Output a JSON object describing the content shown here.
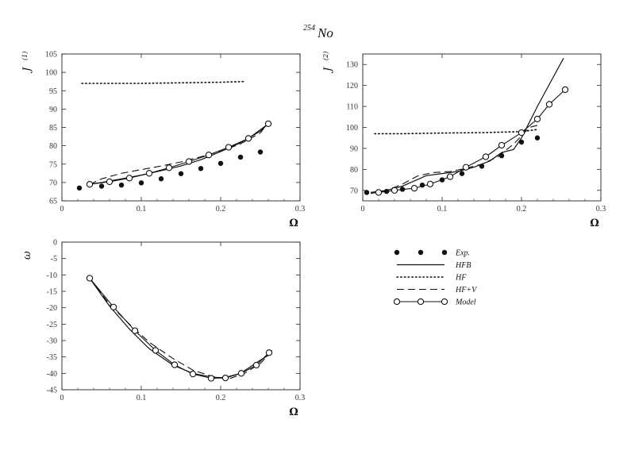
{
  "figure": {
    "title_mass": "254",
    "title_element": "No"
  },
  "legend": [
    {
      "label": "Exp.",
      "style": "dots"
    },
    {
      "label": "HFB",
      "style": "solid"
    },
    {
      "label": "HF",
      "style": "dotted"
    },
    {
      "label": "HF+V",
      "style": "dashed"
    },
    {
      "label": "Model",
      "style": "circles"
    }
  ],
  "colors": {
    "ink": "#111111",
    "frame": "#222222",
    "background": "#ffffff"
  },
  "chart_data": [
    {
      "type": "line",
      "id": "j1",
      "ylabel_main": "J",
      "ylabel_sup": "(1)",
      "xlabel": "Ω",
      "xlim": [
        0,
        0.3
      ],
      "ylim": [
        65,
        105
      ],
      "xticks": [
        "0",
        "0.1",
        "0.2",
        "0.3"
      ],
      "yticks": [
        "65",
        "70",
        "75",
        "80",
        "85",
        "90",
        "95",
        "100",
        "105"
      ],
      "series": [
        {
          "name": "Exp.",
          "style": "dots",
          "x": [
            0.022,
            0.05,
            0.075,
            0.1,
            0.125,
            0.15,
            0.175,
            0.2,
            0.225,
            0.25
          ],
          "y": [
            68.5,
            69,
            69.3,
            69.9,
            71,
            72.4,
            73.8,
            75.2,
            76.9,
            78.3
          ]
        },
        {
          "name": "HFB",
          "style": "solid",
          "x": [
            0.035,
            0.05,
            0.075,
            0.1,
            0.125,
            0.15,
            0.175,
            0.2,
            0.225,
            0.25,
            0.26
          ],
          "y": [
            69.5,
            70,
            71,
            72,
            73.2,
            74.5,
            76.2,
            78.4,
            80.8,
            84,
            86
          ]
        },
        {
          "name": "HF",
          "style": "dotted",
          "x": [
            0.025,
            0.1,
            0.2,
            0.23
          ],
          "y": [
            97,
            97,
            97.3,
            97.5
          ]
        },
        {
          "name": "HF+V",
          "style": "dashed",
          "x": [
            0.035,
            0.05,
            0.075,
            0.1,
            0.125,
            0.15,
            0.175,
            0.2,
            0.225,
            0.25,
            0.26
          ],
          "y": [
            69.5,
            71,
            72.5,
            73.5,
            74.5,
            75.6,
            77,
            78.5,
            80.5,
            83.5,
            86.3
          ]
        },
        {
          "name": "Model",
          "style": "circles",
          "x": [
            0.035,
            0.06,
            0.085,
            0.11,
            0.135,
            0.16,
            0.185,
            0.21,
            0.235,
            0.26
          ],
          "y": [
            69.5,
            70.2,
            71.2,
            72.5,
            74,
            75.7,
            77.5,
            79.6,
            82,
            86
          ]
        }
      ]
    },
    {
      "type": "line",
      "id": "j2",
      "ylabel_main": "J",
      "ylabel_sup": "(2)",
      "xlabel": "Ω",
      "xlim": [
        0,
        0.3
      ],
      "ylim": [
        65,
        135
      ],
      "xticks": [
        "0",
        "0.1",
        "0.2",
        "0.3"
      ],
      "yticks": [
        "70",
        "80",
        "90",
        "100",
        "110",
        "120",
        "130"
      ],
      "series": [
        {
          "name": "Exp.",
          "style": "dots",
          "x": [
            0.005,
            0.03,
            0.05,
            0.075,
            0.1,
            0.125,
            0.15,
            0.175,
            0.2,
            0.22
          ],
          "y": [
            69,
            69.5,
            70.5,
            72.5,
            75,
            78,
            81.5,
            86.5,
            93,
            95
          ]
        },
        {
          "name": "HFB",
          "style": "solid",
          "x": [
            0.01,
            0.03,
            0.05,
            0.065,
            0.08,
            0.1,
            0.12,
            0.14,
            0.16,
            0.175,
            0.19,
            0.2,
            0.22,
            0.24,
            0.253
          ],
          "y": [
            69,
            70,
            72,
            74.5,
            77,
            78,
            79,
            81,
            84,
            88,
            89.5,
            95,
            110,
            124,
            133
          ]
        },
        {
          "name": "HF",
          "style": "dotted",
          "x": [
            0.015,
            0.05,
            0.1,
            0.15,
            0.2,
            0.22
          ],
          "y": [
            97,
            97,
            97.3,
            97.5,
            98,
            99
          ]
        },
        {
          "name": "HF+V",
          "style": "dashed",
          "x": [
            0.01,
            0.03,
            0.05,
            0.07,
            0.09,
            0.11,
            0.13,
            0.15,
            0.17,
            0.19,
            0.21,
            0.22
          ],
          "y": [
            68.5,
            70,
            73,
            77,
            78.5,
            79,
            80.5,
            82.5,
            86,
            92,
            100,
            101
          ]
        },
        {
          "name": "Model",
          "style": "circles",
          "x": [
            0.02,
            0.04,
            0.065,
            0.085,
            0.11,
            0.13,
            0.155,
            0.175,
            0.2,
            0.22,
            0.235,
            0.255
          ],
          "y": [
            69,
            70,
            71,
            73,
            76.5,
            81,
            86,
            91.5,
            97.5,
            104,
            111,
            118
          ]
        }
      ]
    },
    {
      "type": "line",
      "id": "omega",
      "ylabel_main": "ω",
      "ylabel_sup": "",
      "xlabel": "Ω",
      "xlim": [
        0,
        0.3
      ],
      "ylim": [
        -45,
        0
      ],
      "xticks": [
        "0",
        "0.1",
        "0.2",
        "0.3"
      ],
      "yticks": [
        "0",
        "-5",
        "-10",
        "-15",
        "-20",
        "-25",
        "-30",
        "-35",
        "-40",
        "-45"
      ],
      "series": [
        {
          "name": "HFB",
          "style": "solid",
          "x": [
            0.035,
            0.06,
            0.085,
            0.11,
            0.14,
            0.165,
            0.19,
            0.205,
            0.225,
            0.25,
            0.26
          ],
          "y": [
            -11,
            -19.5,
            -26.5,
            -32.5,
            -37.5,
            -40,
            -41.2,
            -41.3,
            -40,
            -36,
            -34.5
          ]
        },
        {
          "name": "HF+V",
          "style": "dashed",
          "x": [
            0.035,
            0.06,
            0.085,
            0.11,
            0.14,
            0.165,
            0.19,
            0.21,
            0.23,
            0.25,
            0.265
          ],
          "y": [
            -11,
            -19,
            -25,
            -30.5,
            -35.5,
            -39,
            -41,
            -41.7,
            -40,
            -37,
            -33
          ]
        },
        {
          "name": "Model",
          "style": "circles",
          "x": [
            0.035,
            0.065,
            0.092,
            0.118,
            0.142,
            0.165,
            0.188,
            0.206,
            0.226,
            0.245,
            0.261
          ],
          "y": [
            -11,
            -19.8,
            -27,
            -33,
            -37.4,
            -40.2,
            -41.5,
            -41.4,
            -40,
            -37.5,
            -33.7
          ]
        }
      ]
    }
  ]
}
